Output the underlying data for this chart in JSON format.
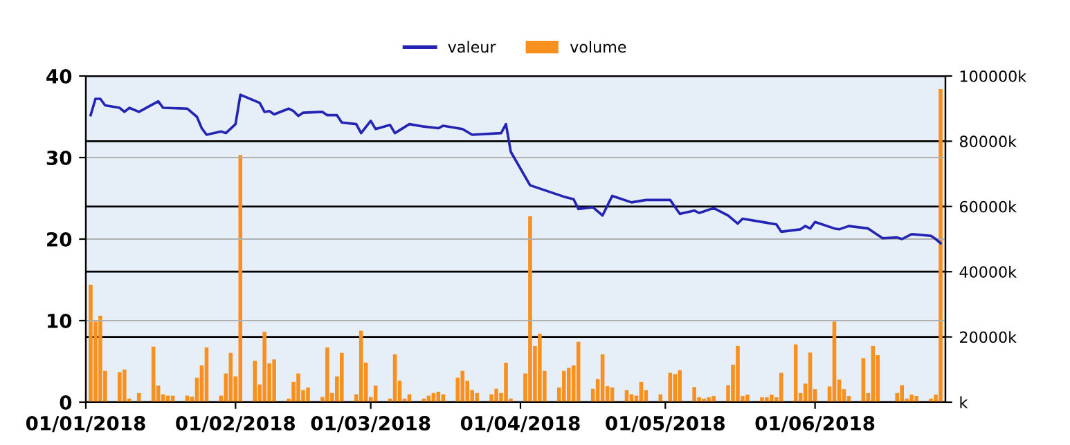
{
  "chart_data": {
    "type": "line",
    "xlim": [
      "2018-01-01",
      "2018-06-28"
    ],
    "xticks": [
      {
        "value": "2018-01-01",
        "label": "01/01/2018"
      },
      {
        "value": "2018-02-01",
        "label": "01/02/2018"
      },
      {
        "value": "2018-03-01",
        "label": "01/03/2018"
      },
      {
        "value": "2018-04-01",
        "label": "01/04/2018"
      },
      {
        "value": "2018-05-01",
        "label": "01/05/2018"
      },
      {
        "value": "2018-06-01",
        "label": "01/06/2018"
      }
    ],
    "ylim": [
      0,
      40
    ],
    "yticks": [
      0,
      10,
      20,
      30,
      40
    ],
    "y2lim": [
      0,
      100000
    ],
    "y2ticks": [
      {
        "value": 0,
        "label": "k"
      },
      {
        "value": 20000,
        "label": "20000k"
      },
      {
        "value": 40000,
        "label": "40000k"
      },
      {
        "value": 60000,
        "label": "60000k"
      },
      {
        "value": 80000,
        "label": "80000k"
      },
      {
        "value": 100000,
        "label": "100000k"
      }
    ],
    "grid": true,
    "legend": "top",
    "series": [
      {
        "name": "valeur",
        "color": "#2424b4",
        "marker": "none",
        "line_style": "solid",
        "x": [
          "2018-01-02",
          "2018-01-03",
          "2018-01-04",
          "2018-01-05",
          "2018-01-08",
          "2018-01-09",
          "2018-01-10",
          "2018-01-12",
          "2018-01-16",
          "2018-01-17",
          "2018-01-22",
          "2018-01-24",
          "2018-01-25",
          "2018-01-26",
          "2018-01-29",
          "2018-01-30",
          "2018-02-01",
          "2018-02-02",
          "2018-02-06",
          "2018-02-07",
          "2018-02-08",
          "2018-02-09",
          "2018-02-12",
          "2018-02-13",
          "2018-02-14",
          "2018-02-15",
          "2018-02-19",
          "2018-02-20",
          "2018-02-22",
          "2018-02-23",
          "2018-02-26",
          "2018-02-27",
          "2018-03-01",
          "2018-03-02",
          "2018-03-05",
          "2018-03-06",
          "2018-03-09",
          "2018-03-12",
          "2018-03-15",
          "2018-03-16",
          "2018-03-20",
          "2018-03-22",
          "2018-03-28",
          "2018-03-29",
          "2018-03-30",
          "2018-04-03",
          "2018-04-05",
          "2018-04-10",
          "2018-04-12",
          "2018-04-13",
          "2018-04-16",
          "2018-04-18",
          "2018-04-20",
          "2018-04-24",
          "2018-04-27",
          "2018-05-02",
          "2018-05-04",
          "2018-05-07",
          "2018-05-08",
          "2018-05-11",
          "2018-05-14",
          "2018-05-16",
          "2018-05-17",
          "2018-05-22",
          "2018-05-24",
          "2018-05-25",
          "2018-05-29",
          "2018-05-30",
          "2018-05-31",
          "2018-06-01",
          "2018-06-05",
          "2018-06-06",
          "2018-06-08",
          "2018-06-12",
          "2018-06-15",
          "2018-06-18",
          "2018-06-19",
          "2018-06-21",
          "2018-06-25",
          "2018-06-26",
          "2018-06-27"
        ],
        "values": [
          35.2,
          37.2,
          37.2,
          36.4,
          36.1,
          35.6,
          36.1,
          35.6,
          36.9,
          36.1,
          36.0,
          35.0,
          33.6,
          32.8,
          33.2,
          33.0,
          34.1,
          37.7,
          36.7,
          35.6,
          35.7,
          35.3,
          36.0,
          35.7,
          35.1,
          35.5,
          35.6,
          35.2,
          35.2,
          34.3,
          34.1,
          33.0,
          34.5,
          33.5,
          34.0,
          33.0,
          34.1,
          33.8,
          33.6,
          33.9,
          33.5,
          32.8,
          33.0,
          34.1,
          30.7,
          26.6,
          26.2,
          25.2,
          24.9,
          23.7,
          23.9,
          22.9,
          25.3,
          24.5,
          24.8,
          24.8,
          23.1,
          23.5,
          23.2,
          23.8,
          22.9,
          21.9,
          22.5,
          22.0,
          21.8,
          20.9,
          21.2,
          21.6,
          21.3,
          22.1,
          21.3,
          21.2,
          21.6,
          21.3,
          20.1,
          20.2,
          20.0,
          20.6,
          20.4,
          20.0,
          19.5
        ]
      },
      {
        "name": "volume",
        "type": "bar",
        "axis": "y2",
        "color": "#f7901e",
        "x": [
          "2018-01-02",
          "2018-01-03",
          "2018-01-04",
          "2018-01-05",
          "2018-01-08",
          "2018-01-09",
          "2018-01-10",
          "2018-01-12",
          "2018-01-15",
          "2018-01-16",
          "2018-01-17",
          "2018-01-18",
          "2018-01-19",
          "2018-01-22",
          "2018-01-23",
          "2018-01-24",
          "2018-01-25",
          "2018-01-26",
          "2018-01-29",
          "2018-01-30",
          "2018-01-31",
          "2018-02-01",
          "2018-02-02",
          "2018-02-05",
          "2018-02-06",
          "2018-02-07",
          "2018-02-08",
          "2018-02-09",
          "2018-02-12",
          "2018-02-13",
          "2018-02-14",
          "2018-02-15",
          "2018-02-16",
          "2018-02-19",
          "2018-02-20",
          "2018-02-21",
          "2018-02-22",
          "2018-02-23",
          "2018-02-26",
          "2018-02-27",
          "2018-02-28",
          "2018-03-01",
          "2018-03-02",
          "2018-03-05",
          "2018-03-06",
          "2018-03-07",
          "2018-03-08",
          "2018-03-09",
          "2018-03-12",
          "2018-03-13",
          "2018-03-14",
          "2018-03-15",
          "2018-03-16",
          "2018-03-19",
          "2018-03-20",
          "2018-03-21",
          "2018-03-22",
          "2018-03-23",
          "2018-03-26",
          "2018-03-27",
          "2018-03-28",
          "2018-03-29",
          "2018-03-30",
          "2018-04-02",
          "2018-04-03",
          "2018-04-04",
          "2018-04-05",
          "2018-04-06",
          "2018-04-09",
          "2018-04-10",
          "2018-04-11",
          "2018-04-12",
          "2018-04-13",
          "2018-04-16",
          "2018-04-17",
          "2018-04-18",
          "2018-04-19",
          "2018-04-20",
          "2018-04-23",
          "2018-04-24",
          "2018-04-25",
          "2018-04-26",
          "2018-04-27",
          "2018-04-30",
          "2018-05-02",
          "2018-05-03",
          "2018-05-04",
          "2018-05-07",
          "2018-05-08",
          "2018-05-09",
          "2018-05-10",
          "2018-05-11",
          "2018-05-14",
          "2018-05-15",
          "2018-05-16",
          "2018-05-17",
          "2018-05-18",
          "2018-05-21",
          "2018-05-22",
          "2018-05-23",
          "2018-05-24",
          "2018-05-25",
          "2018-05-28",
          "2018-05-29",
          "2018-05-30",
          "2018-05-31",
          "2018-06-01",
          "2018-06-04",
          "2018-06-05",
          "2018-06-06",
          "2018-06-07",
          "2018-06-08",
          "2018-06-11",
          "2018-06-12",
          "2018-06-13",
          "2018-06-14",
          "2018-06-18",
          "2018-06-19",
          "2018-06-20",
          "2018-06-21",
          "2018-06-22",
          "2018-06-25",
          "2018-06-26",
          "2018-06-27"
        ],
        "values": [
          36000,
          24700,
          26500,
          9600,
          9200,
          10000,
          1100,
          2800,
          17000,
          5100,
          2400,
          2000,
          2000,
          2000,
          1700,
          7500,
          11300,
          16800,
          2000,
          8800,
          15100,
          7900,
          75800,
          12700,
          5400,
          21600,
          11900,
          13100,
          1100,
          6200,
          8800,
          3700,
          4500,
          1600,
          16800,
          2800,
          7900,
          15100,
          2400,
          21900,
          12100,
          1600,
          5100,
          1100,
          14700,
          6600,
          1100,
          2400,
          1100,
          2000,
          2800,
          3200,
          2400,
          7500,
          9600,
          6600,
          3700,
          2800,
          2400,
          4100,
          2800,
          12100,
          1100,
          8800,
          57000,
          17200,
          21000,
          9600,
          4500,
          9600,
          10500,
          11300,
          18500,
          4100,
          7100,
          14700,
          4900,
          4500,
          3700,
          2400,
          2000,
          6200,
          3700,
          2400,
          9000,
          8600,
          9800,
          4600,
          1500,
          1100,
          1500,
          1900,
          5200,
          11500,
          17200,
          1900,
          2300,
          1500,
          1500,
          2300,
          1500,
          9000,
          17700,
          2800,
          5700,
          15200,
          4000,
          4800,
          24700,
          6900,
          4000,
          1900,
          13500,
          2800,
          17200,
          14400,
          2800,
          5200,
          1100,
          2300,
          1900,
          1100,
          2300,
          96000
        ]
      }
    ]
  }
}
